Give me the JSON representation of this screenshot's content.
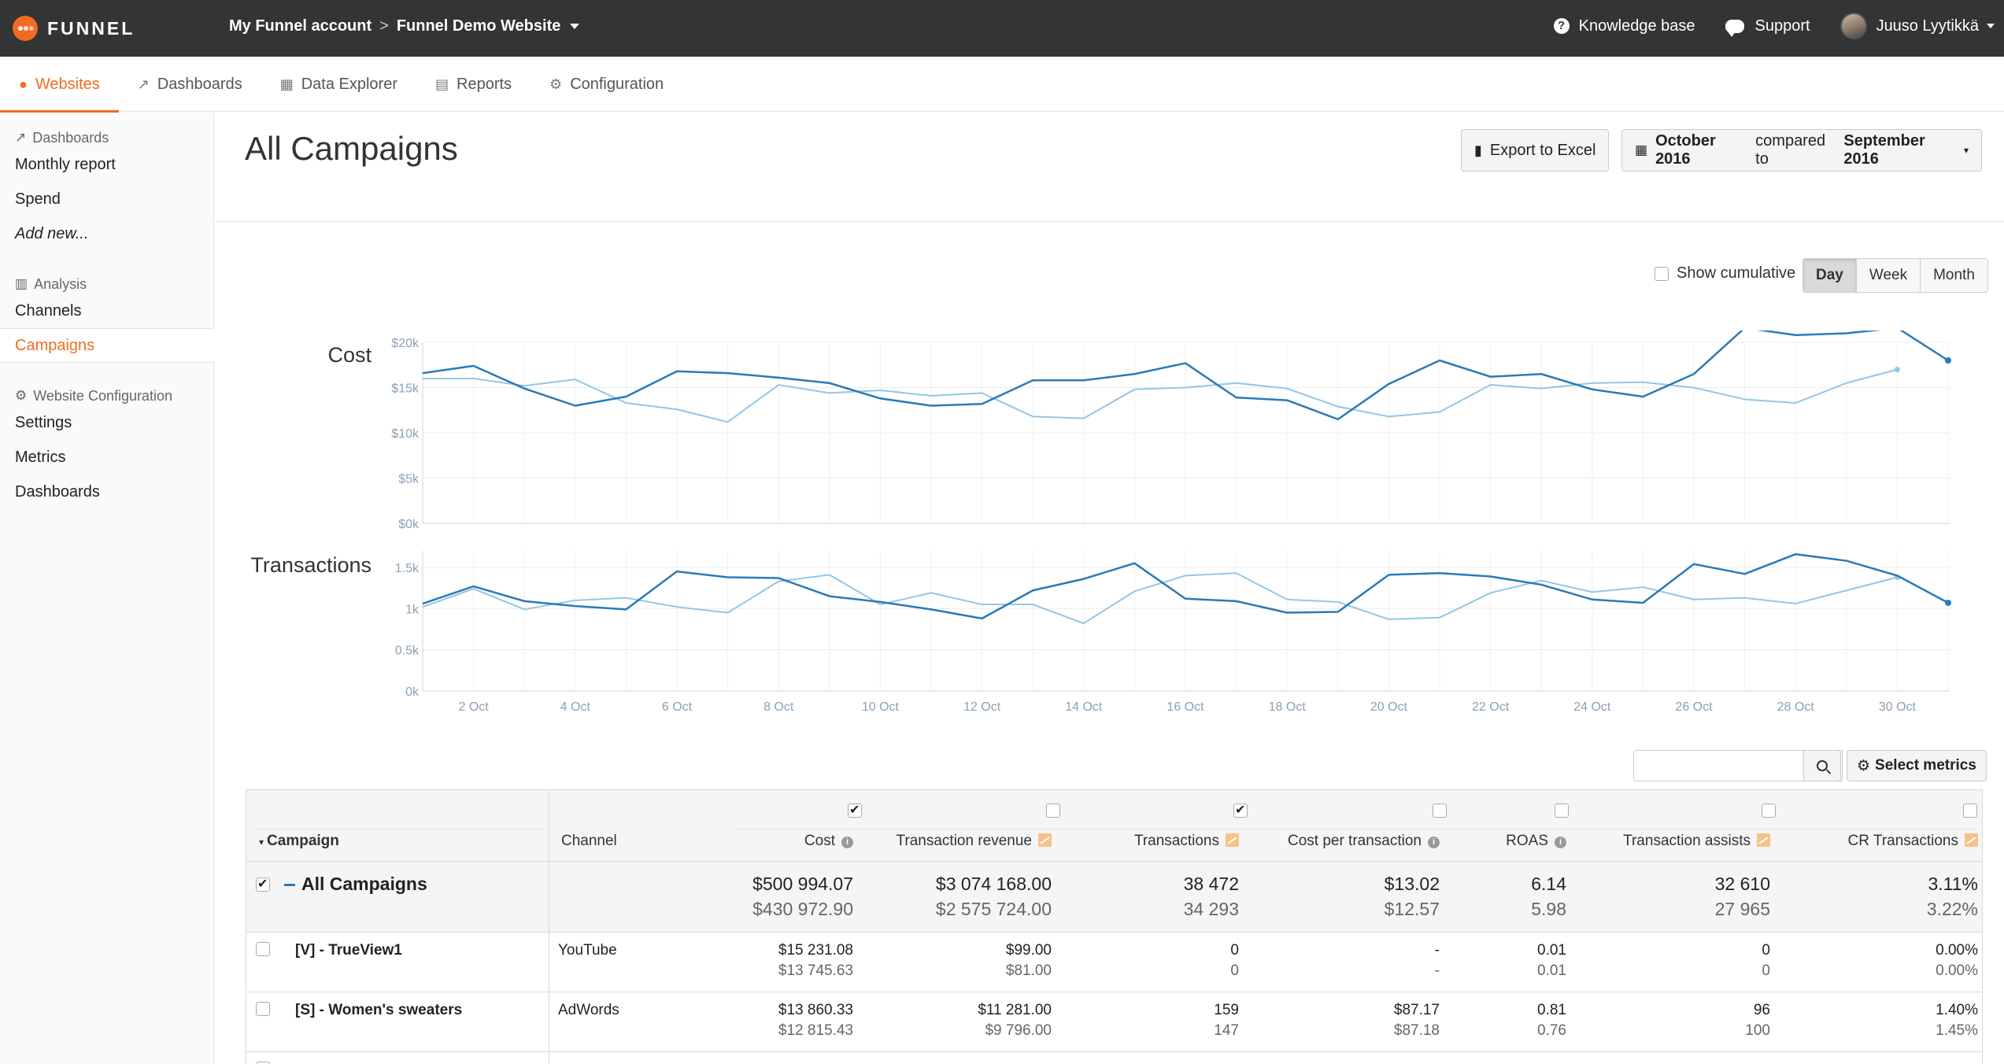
{
  "topbar": {
    "logo_text": "FUNNEL",
    "account": "My Funnel account",
    "separator": ">",
    "website": "Funnel Demo Website",
    "knowledge_base": "Knowledge base",
    "support": "Support",
    "user_name": "Juuso Lyytikkä"
  },
  "nav": {
    "tabs": [
      "Websites",
      "Dashboards",
      "Data Explorer",
      "Reports",
      "Configuration"
    ],
    "active": "Websites"
  },
  "sidebar": {
    "dashboards_heading": "Dashboards",
    "dashboards_items": [
      "Monthly report",
      "Spend",
      "Add new..."
    ],
    "analysis_heading": "Analysis",
    "analysis_items": [
      "Channels",
      "Campaigns"
    ],
    "config_heading": "Website Configuration",
    "config_items": [
      "Settings",
      "Metrics",
      "Dashboards"
    ],
    "active": "Campaigns"
  },
  "page": {
    "title": "All Campaigns",
    "export_label": "Export to Excel",
    "date_period": "October 2016",
    "date_compared_text": "compared to",
    "date_compare_period": "September 2016",
    "show_cumulative": "Show cumulative",
    "granularity": [
      "Day",
      "Week",
      "Month"
    ],
    "granularity_selected": "Day",
    "select_metrics": "Select metrics"
  },
  "colors": {
    "accent": "#f26b21",
    "current_series": "#2a7ab8",
    "previous_series": "#93c6e6",
    "topbar": "#333435"
  },
  "chart_data": [
    {
      "type": "line",
      "title": "Cost",
      "ylim": [
        0,
        20000
      ],
      "yticks": [
        "$0k",
        "$5k",
        "$10k",
        "$15k",
        "$20k"
      ],
      "x_ticks": [
        "2 Oct",
        "4 Oct",
        "6 Oct",
        "8 Oct",
        "10 Oct",
        "12 Oct",
        "14 Oct",
        "16 Oct",
        "18 Oct",
        "20 Oct",
        "22 Oct",
        "24 Oct",
        "26 Oct",
        "28 Oct",
        "30 Oct"
      ],
      "series": [
        {
          "values": [
            16600,
            17400,
            14900,
            13000,
            14000,
            16800,
            16600,
            16100,
            15500,
            13800,
            13000,
            13200,
            15800,
            15800,
            16500,
            17700,
            13900,
            13600,
            11500,
            15400,
            18000,
            16200,
            16500,
            14800,
            14000,
            16500,
            21600,
            20800,
            21000,
            21600,
            18000
          ]
        },
        {
          "values": [
            16000,
            16000,
            15200,
            15900,
            13300,
            12600,
            11200,
            15300,
            14400,
            14700,
            14100,
            14400,
            11800,
            11600,
            14800,
            15000,
            15500,
            14900,
            12900,
            11800,
            12300,
            15300,
            14900,
            15500,
            15600,
            15000,
            13700,
            13300,
            15500,
            17000
          ]
        }
      ]
    },
    {
      "type": "line",
      "title": "Transactions",
      "ylim": [
        0,
        1700
      ],
      "yticks": [
        "0k",
        "0.5k",
        "1k",
        "1.5k"
      ],
      "x_ticks": [
        "2 Oct",
        "4 Oct",
        "6 Oct",
        "8 Oct",
        "10 Oct",
        "12 Oct",
        "14 Oct",
        "16 Oct",
        "18 Oct",
        "20 Oct",
        "22 Oct",
        "24 Oct",
        "26 Oct",
        "28 Oct",
        "30 Oct"
      ],
      "series": [
        {
          "values": [
            1060,
            1270,
            1090,
            1030,
            990,
            1450,
            1380,
            1370,
            1150,
            1080,
            990,
            880,
            1220,
            1360,
            1550,
            1120,
            1090,
            950,
            960,
            1410,
            1430,
            1390,
            1290,
            1110,
            1070,
            1540,
            1420,
            1660,
            1580,
            1400,
            1070
          ]
        },
        {
          "values": [
            1020,
            1240,
            990,
            1100,
            1130,
            1020,
            950,
            1330,
            1410,
            1050,
            1190,
            1050,
            1050,
            820,
            1210,
            1400,
            1430,
            1110,
            1080,
            870,
            890,
            1190,
            1340,
            1200,
            1260,
            1110,
            1130,
            1060,
            1220,
            1380
          ]
        }
      ]
    }
  ],
  "table": {
    "columns": [
      "Campaign",
      "Channel",
      "Cost",
      "Transaction revenue",
      "Transactions",
      "Cost per transaction",
      "ROAS",
      "Transaction assists",
      "CR Transactions"
    ],
    "column_checked": [
      true,
      false,
      true,
      false,
      false,
      false,
      false
    ],
    "total": {
      "name": "All Campaigns",
      "current": [
        "$500 994.07",
        "$3 074 168.00",
        "38 472",
        "$13.02",
        "6.14",
        "32 610",
        "3.11%"
      ],
      "previous": [
        "$430 972.90",
        "$2 575 724.00",
        "34 293",
        "$12.57",
        "5.98",
        "27 965",
        "3.22%"
      ]
    },
    "rows": [
      {
        "name": "[V] - TrueView1",
        "channel": "YouTube",
        "current": [
          "$15 231.08",
          "$99.00",
          "0",
          "-",
          "0.01",
          "0",
          "0.00%"
        ],
        "previous": [
          "$13 745.63",
          "$81.00",
          "0",
          "-",
          "0.01",
          "0",
          "0.00%"
        ]
      },
      {
        "name": "[S] - Women's sweaters",
        "channel": "AdWords",
        "current": [
          "$13 860.33",
          "$11 281.00",
          "159",
          "$87.17",
          "0.81",
          "96",
          "1.40%"
        ],
        "previous": [
          "$12 815.43",
          "$9 796.00",
          "147",
          "$87.18",
          "0.76",
          "100",
          "1.45%"
        ]
      }
    ]
  }
}
